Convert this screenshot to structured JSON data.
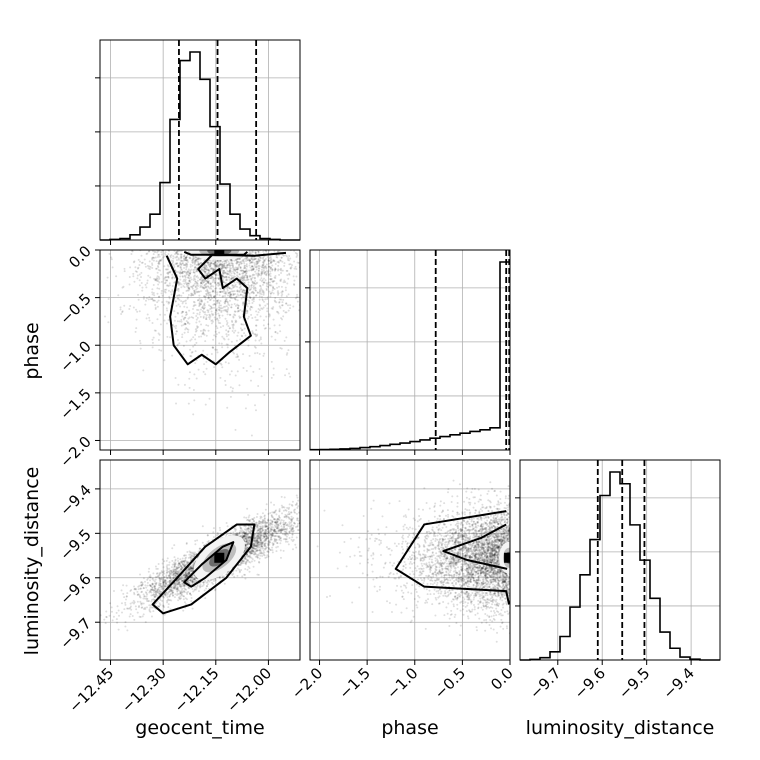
{
  "chart_data": {
    "type": "corner",
    "parameters": [
      "geocent_time",
      "phase",
      "luminosity_distance"
    ],
    "axis_labels": {
      "x": [
        "geocent_time",
        "phase",
        "luminosity_distance"
      ],
      "y": [
        "phase",
        "luminosity_distance"
      ]
    },
    "ranges": {
      "geocent_time": [
        -12.48,
        -11.91
      ],
      "phase": [
        -2.1,
        0.0
      ],
      "luminosity_distance": [
        -9.785,
        -9.335
      ]
    },
    "ticks": {
      "geocent_time": [
        {
          "value": -12.45,
          "label": "−12.45"
        },
        {
          "value": -12.3,
          "label": "−12.30"
        },
        {
          "value": -12.15,
          "label": "−12.15"
        },
        {
          "value": -12.0,
          "label": "−12.00"
        }
      ],
      "phase": [
        {
          "value": -2.0,
          "label": "−2.0"
        },
        {
          "value": -1.5,
          "label": "−1.5"
        },
        {
          "value": -1.0,
          "label": "−1.0"
        },
        {
          "value": -0.5,
          "label": "−0.5"
        },
        {
          "value": 0.0,
          "label": "0.0"
        }
      ],
      "luminosity_distance": [
        {
          "value": -9.7,
          "label": "−9.7"
        },
        {
          "value": -9.6,
          "label": "−9.6"
        },
        {
          "value": -9.5,
          "label": "−9.5"
        },
        {
          "value": -9.4,
          "label": "−9.4"
        }
      ]
    },
    "grid": true,
    "histograms": [
      {
        "param": "geocent_time",
        "bin_edges": [
          -12.48,
          -12.4515,
          -12.423,
          -12.3945,
          -12.366,
          -12.3375,
          -12.309,
          -12.2805,
          -12.252,
          -12.2235,
          -12.195,
          -12.1665,
          -12.138,
          -12.1095,
          -12.081,
          -12.0525,
          -12.024,
          -11.9955,
          -11.967,
          -11.9385,
          -11.91
        ],
        "counts": [
          0,
          2,
          5,
          18,
          45,
          90,
          200,
          420,
          625,
          655,
          560,
          395,
          195,
          90,
          38,
          15,
          5,
          2,
          0,
          0
        ],
        "quantiles": [
          -12.255,
          -12.145,
          -12.035
        ]
      },
      {
        "param": "phase",
        "bin_edges": [
          -2.1,
          -1.995,
          -1.89,
          -1.785,
          -1.68,
          -1.575,
          -1.47,
          -1.365,
          -1.26,
          -1.155,
          -1.05,
          -0.945,
          -0.84,
          -0.735,
          -0.63,
          -0.525,
          -0.42,
          -0.315,
          -0.21,
          -0.105,
          0.0
        ],
        "counts": [
          2,
          3,
          5,
          8,
          12,
          18,
          25,
          33,
          42,
          52,
          63,
          75,
          88,
          100,
          113,
          125,
          138,
          150,
          165,
          1400
        ],
        "quantiles": [
          -0.78,
          -0.04,
          -0.008
        ]
      },
      {
        "param": "luminosity_distance",
        "bin_edges": [
          -9.785,
          -9.7625,
          -9.74,
          -9.7175,
          -9.695,
          -9.6725,
          -9.65,
          -9.6275,
          -9.605,
          -9.5825,
          -9.56,
          -9.5375,
          -9.515,
          -9.4925,
          -9.47,
          -9.4475,
          -9.425,
          -9.4025,
          -9.38,
          -9.3575,
          -9.335
        ],
        "counts": [
          0,
          2,
          8,
          28,
          80,
          180,
          290,
          410,
          560,
          640,
          600,
          460,
          340,
          210,
          95,
          40,
          10,
          3,
          0,
          0
        ],
        "quantiles": [
          -9.61,
          -9.555,
          -9.505
        ]
      }
    ],
    "scatter_2d": [
      {
        "x_param": "geocent_time",
        "y_param": "phase",
        "mean": [
          -12.14,
          -0.35
        ],
        "std": [
          0.11,
          0.45
        ],
        "corr": 0.0,
        "y_skew": "concentrated near 0, tail to −2.0",
        "n_points": 2600,
        "contours": [
          {
            "level": 1,
            "path": [
              [
                -12.24,
                -0.02
              ],
              [
                -12.22,
                -0.05
              ],
              [
                -12.07,
                -0.05
              ],
              [
                -12.06,
                -0.02
              ]
            ]
          },
          {
            "level": 2,
            "path": [
              [
                -12.29,
                -0.06
              ],
              [
                -12.26,
                -0.3
              ],
              [
                -12.28,
                -0.7
              ],
              [
                -12.27,
                -1.0
              ],
              [
                -12.23,
                -1.2
              ],
              [
                -12.19,
                -1.1
              ],
              [
                -12.15,
                -1.2
              ],
              [
                -12.11,
                -1.07
              ],
              [
                -12.05,
                -0.9
              ],
              [
                -12.07,
                -0.7
              ],
              [
                -12.06,
                -0.4
              ],
              [
                -12.09,
                -0.3
              ],
              [
                -12.13,
                -0.4
              ],
              [
                -12.14,
                -0.2
              ],
              [
                -12.18,
                -0.3
              ],
              [
                -12.2,
                -0.2
              ],
              [
                -12.16,
                -0.05
              ],
              [
                -12.04,
                -0.06
              ],
              [
                -11.95,
                -0.03
              ]
            ]
          }
        ]
      },
      {
        "x_param": "geocent_time",
        "y_param": "luminosity_distance",
        "mean": [
          -12.14,
          -9.555
        ],
        "std": [
          0.11,
          0.05
        ],
        "corr": 0.88,
        "n_points": 3800,
        "contours": [
          {
            "level": 1,
            "path": [
              [
                -12.24,
                -9.61
              ],
              [
                -12.19,
                -9.57
              ],
              [
                -12.13,
                -9.53
              ],
              [
                -12.1,
                -9.52
              ],
              [
                -12.12,
                -9.56
              ],
              [
                -12.18,
                -9.6
              ],
              [
                -12.22,
                -9.62
              ]
            ]
          },
          {
            "level": 2,
            "path": [
              [
                -12.33,
                -9.66
              ],
              [
                -12.26,
                -9.6
              ],
              [
                -12.18,
                -9.53
              ],
              [
                -12.09,
                -9.48
              ],
              [
                -12.04,
                -9.48
              ],
              [
                -12.05,
                -9.53
              ],
              [
                -12.12,
                -9.6
              ],
              [
                -12.22,
                -9.66
              ],
              [
                -12.3,
                -9.68
              ]
            ]
          }
        ]
      },
      {
        "x_param": "phase",
        "y_param": "luminosity_distance",
        "mean": [
          -0.35,
          -9.555
        ],
        "std": [
          0.45,
          0.055
        ],
        "corr": 0.0,
        "n_points": 3800,
        "contours": [
          {
            "level": 1,
            "path": [
              [
                -0.04,
                -9.48
              ],
              [
                -0.3,
                -9.51
              ],
              [
                -0.7,
                -9.54
              ],
              [
                -0.45,
                -9.56
              ],
              [
                -0.03,
                -9.58
              ]
            ]
          },
          {
            "level": 2,
            "path": [
              [
                -0.04,
                -9.45
              ],
              [
                -0.9,
                -9.48
              ],
              [
                -1.2,
                -9.58
              ],
              [
                -0.9,
                -9.62
              ],
              [
                -0.04,
                -9.63
              ],
              [
                -0.01,
                -9.66
              ]
            ]
          }
        ]
      }
    ]
  }
}
